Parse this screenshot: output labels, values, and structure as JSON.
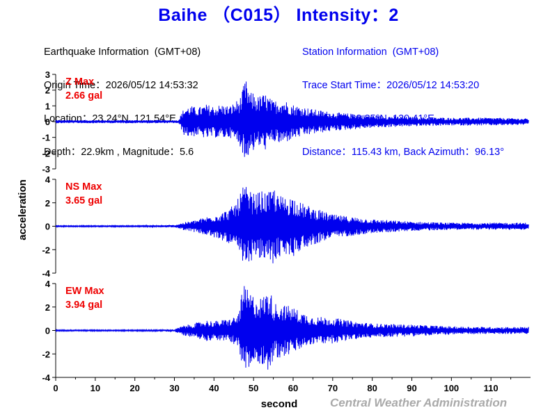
{
  "title": "Baihe （C015） Intensity：2",
  "earthquake": {
    "heading": "Earthquake Information  (GMT+08)",
    "origin_time": "Origin Time：2026/05/12 14:53:32",
    "location": "Location：23.24°N, 121.54°E",
    "depth_magnitude": "Depth：22.9km , Magnitude：5.6"
  },
  "station": {
    "heading": "Station Information  (GMT+08)",
    "trace_start": "Trace Start Time：2026/05/12 14:53:20",
    "location": "Location：23.35°N, 120.41°E",
    "distance": "Distance：115.43 km, Back Azimuth：96.13°"
  },
  "footer": "Central Weather Administration",
  "colors": {
    "title": "#0000ee",
    "trace": "#0000ee",
    "max_label": "#ee0000",
    "footer": "#a9a9a9"
  },
  "chart_data": {
    "type": "line",
    "xlabel": "second",
    "ylabel": "acceleration",
    "xlim": [
      0,
      120
    ],
    "xticks": [
      "0",
      "10",
      "20",
      "30",
      "40",
      "50",
      "60",
      "70",
      "80",
      "90",
      "100",
      "110"
    ],
    "series": [
      {
        "name": "Z",
        "max_label": "Z Max",
        "max_value": "2.66 gal",
        "ylim": [
          -3,
          3
        ],
        "yticks": [
          "3",
          "2",
          "1",
          "0",
          "-1",
          "-2",
          "-3"
        ],
        "x": [
          0,
          10,
          20,
          31,
          32.5,
          34,
          36,
          38,
          40,
          42,
          44,
          46,
          47,
          47.7,
          48.3,
          49,
          50,
          51,
          53,
          55,
          57,
          60,
          65,
          70,
          75,
          80,
          90,
          100,
          110,
          119.5
        ],
        "y": [
          0.1,
          0.1,
          0.1,
          0.1,
          0.9,
          1.0,
          0.9,
          1.1,
          1.0,
          1.1,
          1.0,
          1.4,
          1.7,
          -2.6,
          2.6,
          -1.8,
          1.9,
          -1.6,
          1.8,
          -1.3,
          1.5,
          1.1,
          0.8,
          0.6,
          0.5,
          0.4,
          0.3,
          0.25,
          0.25,
          0.2
        ]
      },
      {
        "name": "NS",
        "max_label": "NS Max",
        "max_value": "3.65 gal",
        "ylim": [
          -4,
          4
        ],
        "yticks": [
          "4",
          "2",
          "0",
          "-2",
          "-4"
        ],
        "x": [
          0,
          10,
          20,
          30,
          32,
          35,
          38,
          40,
          42,
          44,
          46,
          47.5,
          48.5,
          50,
          52,
          54,
          55.2,
          56,
          58,
          60,
          62,
          65,
          70,
          75,
          80,
          90,
          100,
          110,
          119.5
        ],
        "y": [
          0.05,
          0.05,
          0.05,
          0.1,
          0.3,
          0.5,
          0.8,
          1.0,
          1.2,
          1.5,
          2.3,
          3.6,
          -3.2,
          2.8,
          -3.0,
          2.9,
          -3.4,
          2.7,
          -2.5,
          2.6,
          2.0,
          1.6,
          1.0,
          0.8,
          0.6,
          0.4,
          0.3,
          0.3,
          0.3
        ]
      },
      {
        "name": "EW",
        "max_label": "EW Max",
        "max_value": "3.94 gal",
        "ylim": [
          -4,
          4
        ],
        "yticks": [
          "4",
          "2",
          "0",
          "-2",
          "-4"
        ],
        "x": [
          0,
          10,
          20,
          30,
          32,
          35,
          38,
          40,
          42,
          44,
          46,
          47.5,
          48.5,
          50,
          52,
          54,
          55.2,
          56,
          58,
          60,
          62,
          65,
          70,
          75,
          80,
          90,
          100,
          110,
          119.5
        ],
        "y": [
          0.05,
          0.05,
          0.05,
          0.1,
          0.4,
          0.6,
          0.9,
          0.8,
          0.9,
          1.0,
          1.3,
          3.9,
          -3.5,
          3.0,
          -2.8,
          3.6,
          -2.3,
          2.4,
          -2.2,
          2.0,
          1.6,
          1.2,
          1.1,
          0.8,
          0.6,
          0.5,
          0.35,
          0.3,
          0.3
        ]
      }
    ]
  }
}
